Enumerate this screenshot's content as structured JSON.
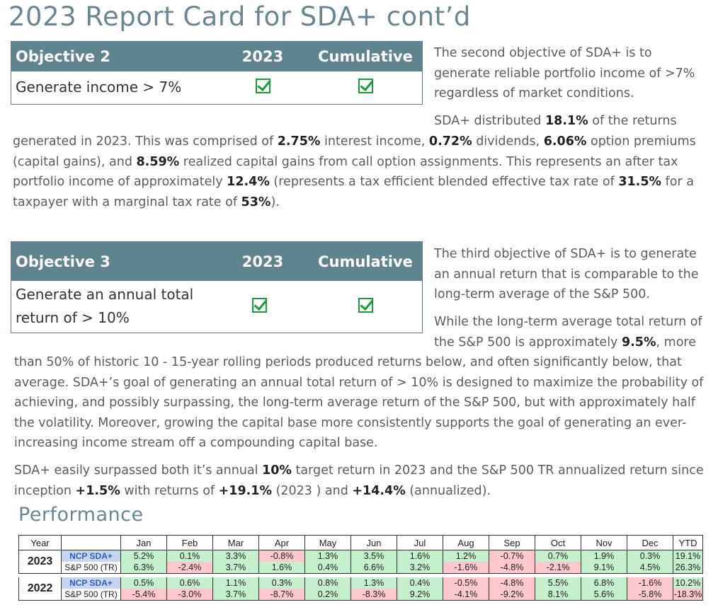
{
  "page_title": "2023 Report Card for SDA+ cont’d",
  "objective2": {
    "header": "Objective 2",
    "col_year": "2023",
    "col_cumulative": "Cumulative",
    "label": "Generate income > 7%"
  },
  "objective2_text": {
    "p1": "The second objective of SDA+ is to generate reliable portfolio income of >7% regardless of market conditions.",
    "p2_a": "SDA+ distributed ",
    "p2_b": "18.1%",
    "p2_c": " of the returns",
    "p3_a": "generated in 2023. This was comprised of ",
    "p3_b": "2.75%",
    "p3_c": " interest income, ",
    "p3_d": "0.72%",
    "p3_e": " dividends, ",
    "p3_f": "6.06%",
    "p3_g": " option premiums (capital gains), and ",
    "p3_h": "8.59%",
    "p3_i": " realized capital gains from call option assignments. This represents an after tax portfolio income of approximately ",
    "p3_j": "12.4%",
    "p3_k": "  (represents a tax efficient blended effective tax rate of ",
    "p3_l": "31.5%",
    "p3_m": " for a taxpayer with a marginal tax rate of ",
    "p3_n": "53%",
    "p3_o": ")."
  },
  "objective3": {
    "header": "Objective 3",
    "col_year": "2023",
    "col_cumulative": "Cumulative",
    "label": "Generate an annual total return of > 10%"
  },
  "objective3_text": {
    "p1": "The third objective of SDA+ is to generate an annual return that is comparable to the long-term average of the S&P 500.",
    "p2_a": "While the long-term average total return of the S&P 500 is approximately ",
    "p2_b": "9.5%",
    "p2_c": ", more",
    "p3": "than 50% of historic 10 - 15-year rolling periods produced returns below, and often significantly below, that average. SDA+’s goal of generating an annual total return of > 10% is designed to maximize the probability of achieving, and possibly surpassing, the long-term average return of the S&P 500, but with approximately half the volatility. Moreover, growing the capital base more consistently supports the goal of generating an ever-increasing income stream off a compounding capital base.",
    "p4_a": "SDA+ easily surpassed both it’s annual ",
    "p4_b": "10%",
    "p4_c": " target return in 2023 and the S&P 500 TR annualized return since inception ",
    "p4_d": "+1.5%",
    "p4_e": " with returns of ",
    "p4_f": "+19.1%",
    "p4_g": " (2023 ) and ",
    "p4_h": "+14.4%",
    "p4_i": " (annualized)."
  },
  "performance": {
    "title": "Performance",
    "headers": [
      "Year",
      "",
      "Jan",
      "Feb",
      "Mar",
      "Apr",
      "May",
      "Jun",
      "Jul",
      "Aug",
      "Sep",
      "Oct",
      "Nov",
      "Dec",
      "YTD"
    ],
    "years": [
      {
        "year": "2023",
        "rows": [
          {
            "label": "NCP SDA+",
            "values": [
              "5.2%",
              "0.1%",
              "3.3%",
              "-0.8%",
              "1.3%",
              "3.5%",
              "1.6%",
              "1.2%",
              "-0.7%",
              "0.7%",
              "1.9%",
              "0.3%",
              "19.1%"
            ]
          },
          {
            "label": "S&P 500 (TR)",
            "values": [
              "6.3%",
              "-2.4%",
              "3.7%",
              "1.6%",
              "0.4%",
              "6.6%",
              "3.2%",
              "-1.6%",
              "-4.8%",
              "-2.1%",
              "9.1%",
              "4.5%",
              "26.3%"
            ]
          }
        ]
      },
      {
        "year": "2022",
        "rows": [
          {
            "label": "NCP SDA+",
            "values": [
              "0.5%",
              "0.6%",
              "1.1%",
              "0.3%",
              "0.8%",
              "1.3%",
              "0.4%",
              "-0.5%",
              "-4.8%",
              "5.5%",
              "6.8%",
              "-1.6%",
              "10.2%"
            ]
          },
          {
            "label": "S&P 500 (TR)",
            "values": [
              "-5.4%",
              "-3.0%",
              "3.7%",
              "-8.7%",
              "0.2%",
              "-8.3%",
              "9.2%",
              "-4.1%",
              "-9.2%",
              "8.1%",
              "5.6%",
              "-5.8%",
              "-18.3%"
            ]
          }
        ]
      }
    ]
  },
  "colors": {
    "title": "#6b8690",
    "header_bg": "#5f848e",
    "check": "#1b9a3e",
    "positive_bg": "#c6efce",
    "negative_bg": "#ffc7ce",
    "label_bg": "#c9d5ee"
  },
  "icons": [
    "checkbox-checked-icon"
  ]
}
